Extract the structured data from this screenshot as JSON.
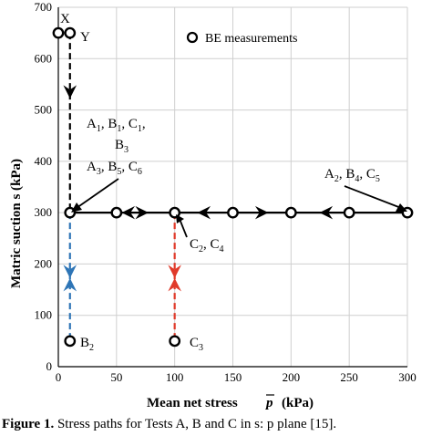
{
  "chart_data": {
    "type": "scatter",
    "xlabel": "Mean net stress",
    "xlabel_symbol": "p",
    "xlabel_unit": "(kPa)",
    "ylabel": "Matric suction s (kPa)",
    "xlim": [
      0,
      300
    ],
    "ylim": [
      0,
      700
    ],
    "xticks": [
      0,
      50,
      100,
      150,
      200,
      250,
      300
    ],
    "yticks": [
      0,
      100,
      200,
      300,
      400,
      500,
      600,
      700
    ],
    "grid": true,
    "legend": {
      "label": "BE measurements",
      "position": "top-right"
    },
    "colors": {
      "black_path": "#000000",
      "blue_path": "#2e75b6",
      "red_path": "#e03a2a"
    },
    "be_points": [
      [
        0,
        650
      ],
      [
        10,
        650
      ],
      [
        10,
        300
      ],
      [
        50,
        300
      ],
      [
        100,
        300
      ],
      [
        150,
        300
      ],
      [
        200,
        300
      ],
      [
        250,
        300
      ],
      [
        300,
        300
      ],
      [
        10,
        50
      ],
      [
        100,
        50
      ]
    ],
    "paths": [
      {
        "color": "black_path",
        "dash": true,
        "points": [
          [
            10,
            650
          ],
          [
            10,
            300
          ]
        ],
        "arrows": [
          [
            10,
            535,
            "down"
          ]
        ]
      },
      {
        "color": "black_path",
        "dash": false,
        "points": [
          [
            10,
            300
          ],
          [
            300,
            300
          ]
        ],
        "arrows": [
          [
            60,
            300,
            "left"
          ],
          [
            72,
            300,
            "right"
          ],
          [
            125,
            300,
            "left"
          ],
          [
            175,
            300,
            "right"
          ],
          [
            230,
            300,
            "left"
          ]
        ]
      },
      {
        "color": "blue_path",
        "dash": true,
        "points": [
          [
            10,
            300
          ],
          [
            10,
            50
          ]
        ],
        "arrows": [
          [
            10,
            185,
            "down"
          ],
          [
            10,
            160,
            "up"
          ]
        ]
      },
      {
        "color": "red_path",
        "dash": true,
        "points": [
          [
            100,
            300
          ],
          [
            100,
            50
          ]
        ],
        "arrows": [
          [
            100,
            185,
            "down"
          ],
          [
            100,
            160,
            "up"
          ]
        ]
      }
    ]
  },
  "labels": {
    "x": "X",
    "y": "Y",
    "abc_line1": "A1, B1, C1,",
    "abc_line2": "B3",
    "abc_line3": "A3, B5, C6",
    "a2b4c5": "A2, B4, C5",
    "c2c4": "C2, C4",
    "b2": "B2",
    "c3": "C3"
  },
  "caption": {
    "bold": "Figure 1.",
    "text": "Stress paths for Tests A, B and C in s: p  plane  [15]."
  }
}
